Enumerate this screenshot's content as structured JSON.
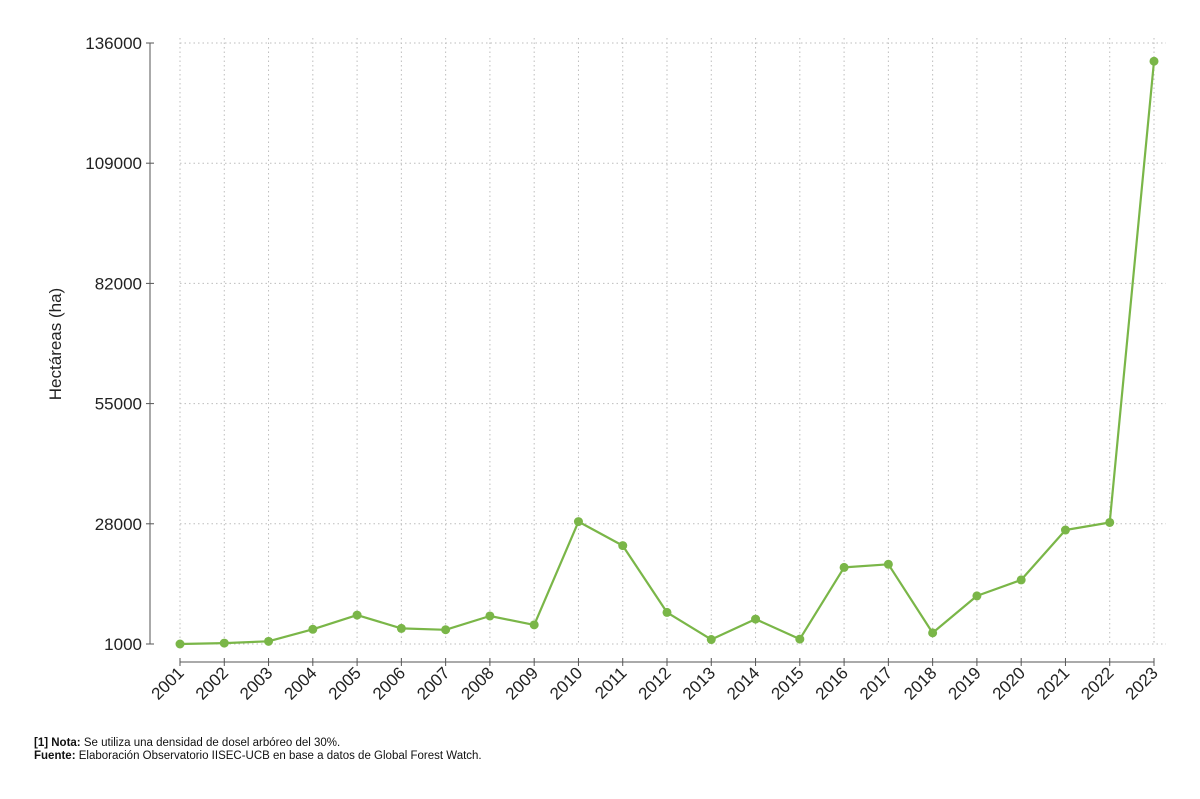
{
  "chart_data": {
    "type": "line",
    "title": "",
    "xlabel": "",
    "ylabel": "Hectáreas (ha)",
    "x": [
      "2001",
      "2002",
      "2003",
      "2004",
      "2005",
      "2006",
      "2007",
      "2008",
      "2009",
      "2010",
      "2011",
      "2012",
      "2013",
      "2014",
      "2015",
      "2016",
      "2017",
      "2018",
      "2019",
      "2020",
      "2021",
      "2022",
      "2023"
    ],
    "series": [
      {
        "values": [
          1000,
          1200,
          1600,
          4300,
          7500,
          4500,
          4200,
          7300,
          5300,
          28500,
          23100,
          8100,
          2000,
          6600,
          2100,
          18200,
          18900,
          3500,
          11800,
          15400,
          26600,
          28300,
          131900
        ]
      }
    ],
    "yticks": [
      1000,
      28000,
      55000,
      82000,
      109000,
      136000
    ],
    "ytick_labels": [
      "1000",
      "28000",
      "55000",
      "82000",
      "109000",
      "136000"
    ],
    "ylim": [
      1000,
      136000
    ],
    "grid": true,
    "line_color": "#7ab648"
  },
  "notes": {
    "nota_label": "[1] Nota:",
    "nota_text": " Se utiliza una densidad de dosel arbóreo del 30%.",
    "fuente_label": "Fuente:",
    "fuente_text": " Elaboración Observatorio IISEC-UCB en base a datos de Global Forest Watch."
  }
}
